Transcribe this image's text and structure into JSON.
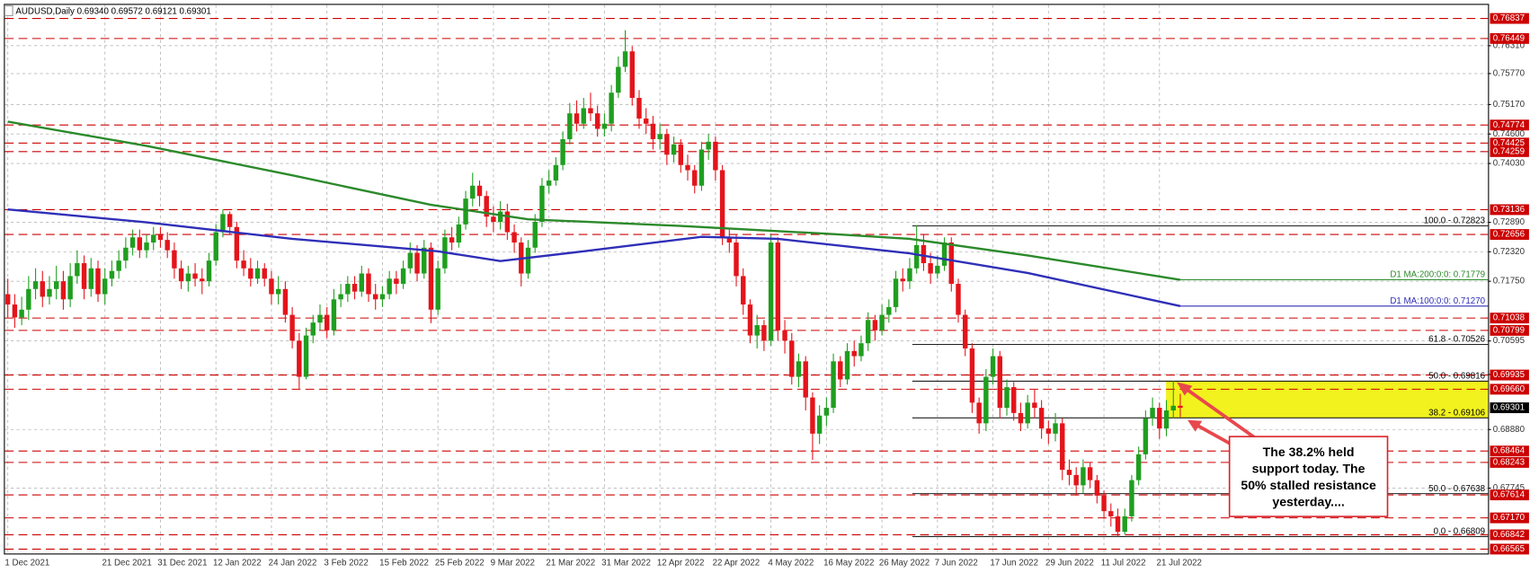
{
  "chart_data": {
    "type": "candlestick",
    "title": "AUDUSD,Daily  0.69340 0.69572 0.69121 0.69301",
    "categories": [
      "1 Dec 2021",
      null,
      null,
      null,
      null,
      null,
      null,
      null,
      null,
      null,
      null,
      null,
      null,
      null,
      "21 Dec 2021",
      null,
      null,
      null,
      null,
      null,
      null,
      null,
      "31 Dec 2021",
      null,
      null,
      null,
      null,
      null,
      null,
      null,
      "12 Jan 2022",
      null,
      null,
      null,
      null,
      null,
      null,
      null,
      "24 Jan 2022",
      null,
      null,
      null,
      null,
      null,
      null,
      null,
      "3 Feb 2022",
      null,
      null,
      null,
      null,
      null,
      null,
      null,
      "15 Feb 2022",
      null,
      null,
      null,
      null,
      null,
      null,
      null,
      "25 Feb 2022",
      null,
      null,
      null,
      null,
      null,
      null,
      null,
      "9 Mar 2022",
      null,
      null,
      null,
      null,
      null,
      null,
      null,
      "21 Mar 2022",
      null,
      null,
      null,
      null,
      null,
      null,
      null,
      "31 Mar 2022",
      null,
      null,
      null,
      null,
      null,
      null,
      null,
      "12 Apr 2022",
      null,
      null,
      null,
      null,
      null,
      null,
      null,
      "22 Apr 2022",
      null,
      null,
      null,
      null,
      null,
      null,
      null,
      "4 May 2022",
      null,
      null,
      null,
      null,
      null,
      null,
      null,
      "16 May 2022",
      null,
      null,
      null,
      null,
      null,
      null,
      null,
      "26 May 2022",
      null,
      null,
      null,
      null,
      null,
      null,
      null,
      "7 Jun 2022",
      null,
      null,
      null,
      null,
      null,
      null,
      null,
      "17 Jun 2022",
      null,
      null,
      null,
      null,
      null,
      null,
      null,
      "29 Jun 2022",
      null,
      null,
      null,
      null,
      null,
      null,
      null,
      "11 Jul 2022",
      null,
      null,
      null,
      null,
      null,
      null,
      null,
      "21 Jul 2022",
      null,
      null,
      null
    ],
    "open": [
      0.715,
      0.713,
      0.7105,
      0.712,
      0.716,
      0.7175,
      0.7145,
      0.716,
      0.7175,
      0.714,
      0.7185,
      0.721,
      0.716,
      0.72,
      0.715,
      0.718,
      0.7195,
      0.7215,
      0.724,
      0.726,
      0.7235,
      0.725,
      0.7265,
      0.7255,
      0.7235,
      0.72,
      0.7175,
      0.719,
      0.718,
      0.7175,
      0.7215,
      0.727,
      0.7305,
      0.728,
      0.7215,
      0.72,
      0.718,
      0.72,
      0.718,
      0.715,
      0.716,
      0.711,
      0.706,
      0.699,
      0.707,
      0.7095,
      0.711,
      0.708,
      0.714,
      0.715,
      0.717,
      0.7155,
      0.719,
      0.715,
      0.714,
      0.715,
      0.718,
      0.717,
      0.72,
      0.723,
      0.719,
      0.724,
      0.712,
      0.72,
      0.726,
      0.725,
      0.7285,
      0.7335,
      0.736,
      0.734,
      0.73,
      0.729,
      0.731,
      0.727,
      0.725,
      0.719,
      0.724,
      0.729,
      0.736,
      0.737,
      0.74,
      0.745,
      0.75,
      0.748,
      0.751,
      0.75,
      0.747,
      0.748,
      0.754,
      0.759,
      0.762,
      0.753,
      0.749,
      0.748,
      0.745,
      0.746,
      0.742,
      0.744,
      0.74,
      0.739,
      0.736,
      0.743,
      0.7445,
      0.739,
      0.726,
      0.725,
      0.7185,
      0.713,
      0.707,
      0.709,
      0.706,
      0.725,
      0.708,
      0.706,
      0.699,
      0.702,
      0.695,
      0.688,
      0.6915,
      0.693,
      0.702,
      0.6985,
      0.704,
      0.703,
      0.7055,
      0.71,
      0.708,
      0.711,
      0.7125,
      0.718,
      0.7175,
      0.72,
      0.7245,
      0.721,
      0.719,
      0.7205,
      0.725,
      0.717,
      0.711,
      0.7045,
      0.694,
      0.69,
      0.699,
      0.703,
      0.693,
      0.697,
      0.692,
      0.69,
      0.694,
      0.693,
      0.689,
      0.688,
      0.69,
      0.681,
      0.68,
      0.678,
      0.6815,
      0.679,
      0.676,
      0.673,
      0.672,
      0.669,
      0.672,
      0.679,
      0.684,
      0.691,
      0.693,
      0.689,
      0.6925,
      0.6934
    ],
    "high": [
      0.718,
      0.715,
      0.7145,
      0.7185,
      0.72,
      0.7195,
      0.7185,
      0.7205,
      0.7195,
      0.721,
      0.7235,
      0.7225,
      0.722,
      0.7215,
      0.72,
      0.7215,
      0.7235,
      0.726,
      0.7275,
      0.7275,
      0.7265,
      0.728,
      0.728,
      0.727,
      0.725,
      0.7215,
      0.7205,
      0.721,
      0.72,
      0.723,
      0.7285,
      0.7314,
      0.731,
      0.729,
      0.7235,
      0.722,
      0.7215,
      0.721,
      0.7195,
      0.7185,
      0.7175,
      0.7125,
      0.7075,
      0.7085,
      0.711,
      0.713,
      0.7125,
      0.716,
      0.717,
      0.7185,
      0.7185,
      0.7205,
      0.72,
      0.717,
      0.7165,
      0.7195,
      0.7195,
      0.7215,
      0.725,
      0.7245,
      0.7255,
      0.725,
      0.7215,
      0.7275,
      0.728,
      0.73,
      0.735,
      0.7385,
      0.737,
      0.735,
      0.732,
      0.733,
      0.7325,
      0.7285,
      0.726,
      0.7255,
      0.7305,
      0.7375,
      0.739,
      0.7415,
      0.7465,
      0.752,
      0.7525,
      0.753,
      0.754,
      0.7515,
      0.75,
      0.7555,
      0.761,
      0.7661,
      0.763,
      0.7545,
      0.751,
      0.7495,
      0.748,
      0.747,
      0.7455,
      0.745,
      0.742,
      0.74,
      0.7445,
      0.746,
      0.7455,
      0.74,
      0.7275,
      0.7265,
      0.72,
      0.714,
      0.711,
      0.71,
      0.7265,
      0.726,
      0.71,
      0.7075,
      0.7035,
      0.703,
      0.696,
      0.6935,
      0.695,
      0.7035,
      0.703,
      0.7055,
      0.706,
      0.707,
      0.7115,
      0.711,
      0.713,
      0.714,
      0.7195,
      0.72,
      0.722,
      0.7283,
      0.7265,
      0.723,
      0.7225,
      0.726,
      0.726,
      0.718,
      0.712,
      0.7055,
      0.695,
      0.7005,
      0.7045,
      0.704,
      0.6985,
      0.698,
      0.694,
      0.6955,
      0.6965,
      0.6945,
      0.6905,
      0.692,
      0.691,
      0.683,
      0.6815,
      0.683,
      0.6825,
      0.68,
      0.677,
      0.6745,
      0.6735,
      0.6735,
      0.68,
      0.6855,
      0.6925,
      0.695,
      0.694,
      0.6945,
      0.6982,
      0.69572
    ],
    "low": [
      0.7105,
      0.7085,
      0.709,
      0.71,
      0.714,
      0.7125,
      0.713,
      0.714,
      0.712,
      0.7125,
      0.717,
      0.714,
      0.7145,
      0.7135,
      0.713,
      0.7165,
      0.718,
      0.72,
      0.7225,
      0.722,
      0.722,
      0.7235,
      0.724,
      0.722,
      0.718,
      0.716,
      0.7155,
      0.7165,
      0.715,
      0.7165,
      0.7205,
      0.726,
      0.7265,
      0.72,
      0.7185,
      0.7165,
      0.717,
      0.7165,
      0.713,
      0.713,
      0.7095,
      0.7045,
      0.6967,
      0.6985,
      0.7055,
      0.708,
      0.7065,
      0.707,
      0.7125,
      0.7135,
      0.714,
      0.7145,
      0.7135,
      0.712,
      0.7125,
      0.714,
      0.715,
      0.716,
      0.719,
      0.7175,
      0.718,
      0.7094,
      0.711,
      0.719,
      0.7235,
      0.724,
      0.7275,
      0.732,
      0.732,
      0.728,
      0.727,
      0.7275,
      0.7255,
      0.723,
      0.7165,
      0.718,
      0.723,
      0.728,
      0.7345,
      0.736,
      0.739,
      0.744,
      0.7465,
      0.747,
      0.7485,
      0.7455,
      0.7455,
      0.7465,
      0.753,
      0.758,
      0.7515,
      0.747,
      0.746,
      0.743,
      0.743,
      0.74,
      0.7405,
      0.7385,
      0.737,
      0.7345,
      0.735,
      0.741,
      0.737,
      0.7245,
      0.723,
      0.7165,
      0.711,
      0.7055,
      0.7045,
      0.704,
      0.705,
      0.706,
      0.7035,
      0.6975,
      0.697,
      0.6925,
      0.6829,
      0.686,
      0.6895,
      0.692,
      0.697,
      0.6975,
      0.701,
      0.702,
      0.704,
      0.706,
      0.707,
      0.7095,
      0.7115,
      0.7155,
      0.716,
      0.719,
      0.7195,
      0.717,
      0.718,
      0.7195,
      0.7155,
      0.7095,
      0.703,
      0.692,
      0.688,
      0.6885,
      0.6975,
      0.691,
      0.6915,
      0.6905,
      0.6885,
      0.689,
      0.691,
      0.687,
      0.686,
      0.6865,
      0.679,
      0.678,
      0.676,
      0.6765,
      0.6775,
      0.6745,
      0.6715,
      0.67,
      0.66809,
      0.6685,
      0.671,
      0.678,
      0.683,
      0.6895,
      0.687,
      0.6875,
      0.691,
      0.69121
    ],
    "close": [
      0.713,
      0.7105,
      0.712,
      0.716,
      0.7175,
      0.7145,
      0.716,
      0.7175,
      0.714,
      0.7185,
      0.721,
      0.716,
      0.72,
      0.715,
      0.718,
      0.7195,
      0.7215,
      0.724,
      0.726,
      0.7235,
      0.725,
      0.7265,
      0.7255,
      0.7235,
      0.72,
      0.7175,
      0.719,
      0.718,
      0.7175,
      0.7215,
      0.727,
      0.7305,
      0.728,
      0.7215,
      0.72,
      0.718,
      0.72,
      0.718,
      0.715,
      0.716,
      0.711,
      0.706,
      0.699,
      0.707,
      0.7095,
      0.711,
      0.708,
      0.714,
      0.715,
      0.717,
      0.7155,
      0.719,
      0.715,
      0.714,
      0.715,
      0.718,
      0.717,
      0.72,
      0.723,
      0.719,
      0.724,
      0.712,
      0.72,
      0.726,
      0.725,
      0.7285,
      0.7335,
      0.736,
      0.734,
      0.73,
      0.729,
      0.731,
      0.727,
      0.725,
      0.719,
      0.724,
      0.729,
      0.736,
      0.737,
      0.74,
      0.745,
      0.75,
      0.748,
      0.751,
      0.75,
      0.747,
      0.748,
      0.754,
      0.759,
      0.762,
      0.753,
      0.749,
      0.748,
      0.745,
      0.746,
      0.742,
      0.744,
      0.74,
      0.739,
      0.736,
      0.743,
      0.7445,
      0.739,
      0.726,
      0.725,
      0.7185,
      0.713,
      0.707,
      0.709,
      0.706,
      0.725,
      0.708,
      0.706,
      0.699,
      0.702,
      0.695,
      0.688,
      0.6915,
      0.693,
      0.702,
      0.6985,
      0.704,
      0.703,
      0.7055,
      0.71,
      0.708,
      0.711,
      0.7125,
      0.718,
      0.7175,
      0.72,
      0.7245,
      0.721,
      0.719,
      0.7205,
      0.725,
      0.717,
      0.711,
      0.7045,
      0.694,
      0.69,
      0.699,
      0.703,
      0.693,
      0.697,
      0.692,
      0.69,
      0.694,
      0.693,
      0.689,
      0.688,
      0.69,
      0.681,
      0.68,
      0.678,
      0.6815,
      0.679,
      0.676,
      0.673,
      0.672,
      0.669,
      0.672,
      0.679,
      0.684,
      0.691,
      0.693,
      0.689,
      0.6925,
      0.6934,
      0.69301
    ],
    "up_color": "#1f9e1f",
    "down_color": "#e4141b",
    "ylim": [
      0.6648,
      0.771
    ],
    "yticks": [
      {
        "value": 0.7631,
        "label": "0.76310"
      },
      {
        "value": 0.7577,
        "label": "0.75770"
      },
      {
        "value": 0.7517,
        "label": "0.75170"
      },
      {
        "value": 0.746,
        "label": "0.74600"
      },
      {
        "value": 0.7403,
        "label": "0.74030"
      },
      {
        "value": 0.7289,
        "label": "0.72890"
      },
      {
        "value": 0.7232,
        "label": "0.72320"
      },
      {
        "value": 0.7175,
        "label": "0.71750"
      },
      0.70595,
      0.69945,
      {
        "value": 0.6888,
        "label": "0.68880"
      },
      0.67745
    ],
    "grid": true,
    "levels": [
      0.76837,
      0.76449,
      0.74774,
      0.74425,
      0.74259,
      0.73136,
      0.72656,
      0.71038,
      0.70799,
      0.69935,
      {
        "value": 0.6966,
        "label": "0.69660"
      },
      0.68464,
      0.68243,
      0.67614,
      {
        "value": 0.6717,
        "label": "0.67170"
      },
      0.66842,
      0.66565
    ],
    "level_color": "#cc0000",
    "moving_averages": [
      {
        "name": "D1 MA:200:0:0: 0.71779",
        "color": "#2b8a2b",
        "x": [
          0,
          20,
          41,
          61,
          75,
          97,
          118,
          130,
          147,
          169
        ],
        "values": [
          0.7484,
          0.7437,
          0.738,
          0.7323,
          0.7295,
          0.7282,
          0.7267,
          0.7257,
          0.7225,
          0.71779
        ]
      },
      {
        "name": "D1 MA:100:0:0: 0.71270",
        "color": "#2f2fb8",
        "x": [
          0,
          20,
          41,
          62,
          71,
          83,
          100,
          111,
          130,
          147,
          169
        ],
        "values": [
          0.7314,
          0.7289,
          0.7257,
          0.7233,
          0.7214,
          0.7233,
          0.7261,
          0.7257,
          0.7229,
          0.7191,
          0.7127
        ]
      }
    ],
    "fib_levels": [
      {
        "value": 0.72823,
        "label": "100.0 - 0.72823"
      },
      {
        "value": 0.70526,
        "label": "61.8 - 0.70526"
      },
      {
        "value": 0.69816,
        "label": "50.0 - 0.69816"
      },
      {
        "value": 0.69106,
        "label": "38.2 - 0.69106"
      },
      {
        "value": 0.67638,
        "label": "50.0 - 0.67638"
      },
      {
        "value": 0.66809,
        "label": "0.0 - 0.66809"
      }
    ],
    "zone_color": "#f2f21e",
    "annotation": [
      "The 38.2% held",
      "support today. The",
      "50% stalled resistance",
      "yesterday...."
    ]
  }
}
